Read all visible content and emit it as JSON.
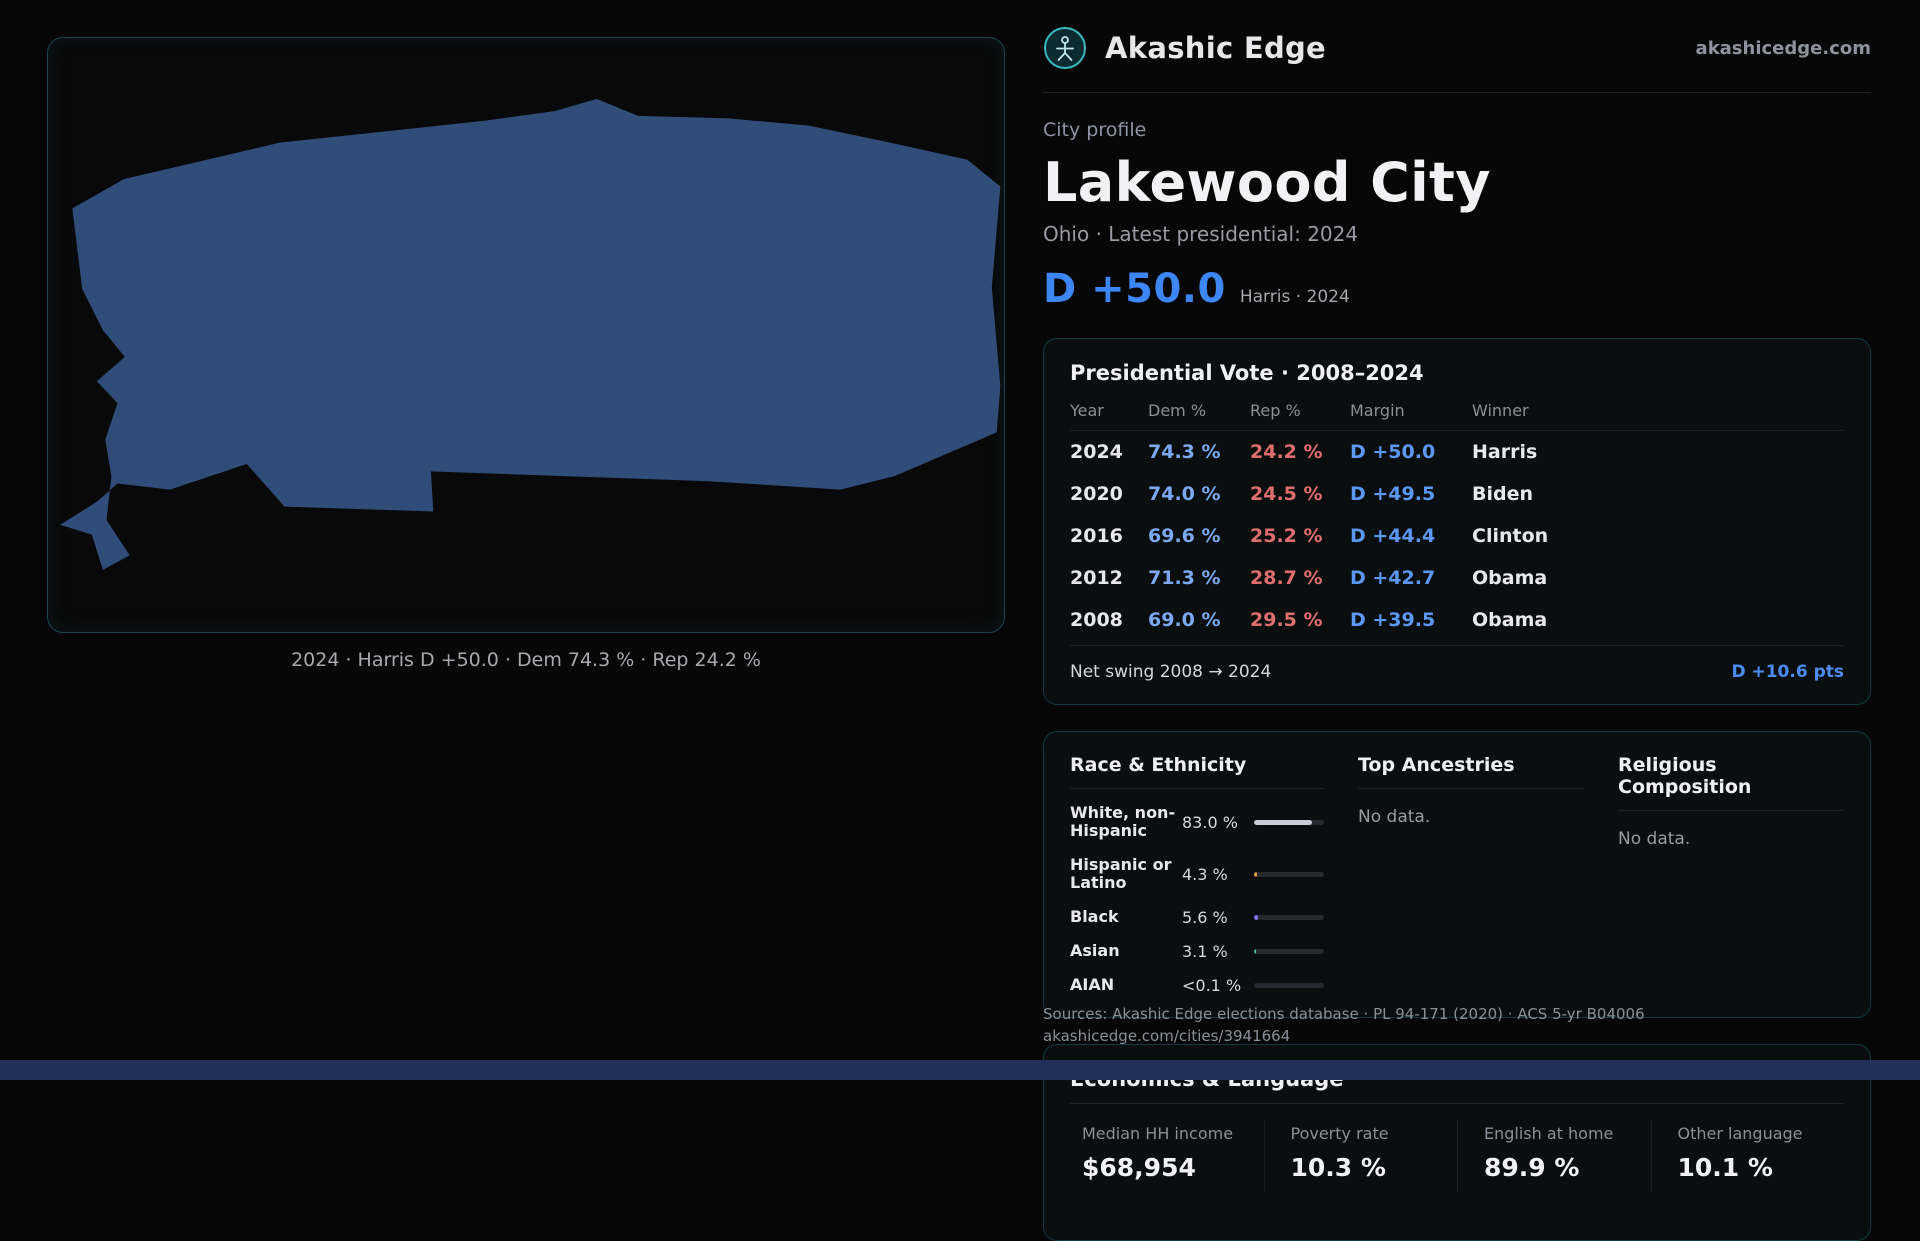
{
  "brand": {
    "name": "Akashic Edge",
    "domain": "akashicedge.com"
  },
  "profile": {
    "eyebrow": "City profile",
    "city": "Lakewood City",
    "subtitle": "Ohio · Latest presidential: 2024",
    "headline_margin": "D +50.0",
    "headline_note": "Harris · 2024"
  },
  "map": {
    "caption": "2024 · Harris D +50.0 · Dem 74.3 % · Rep 24.2 %",
    "fill_color": "#2f4d78",
    "border_color": "#17454c"
  },
  "vote_table": {
    "title": "Presidential Vote · 2008–2024",
    "columns": [
      "Year",
      "Dem %",
      "Rep %",
      "Margin",
      "Winner"
    ],
    "rows": [
      {
        "year": "2024",
        "dem": "74.3 %",
        "rep": "24.2 %",
        "margin": "D +50.0",
        "winner": "Harris"
      },
      {
        "year": "2020",
        "dem": "74.0 %",
        "rep": "24.5 %",
        "margin": "D +49.5",
        "winner": "Biden"
      },
      {
        "year": "2016",
        "dem": "69.6 %",
        "rep": "25.2 %",
        "margin": "D +44.4",
        "winner": "Clinton"
      },
      {
        "year": "2012",
        "dem": "71.3 %",
        "rep": "28.7 %",
        "margin": "D +42.7",
        "winner": "Obama"
      },
      {
        "year": "2008",
        "dem": "69.0 %",
        "rep": "29.5 %",
        "margin": "D +39.5",
        "winner": "Obama"
      }
    ],
    "footer_label": "Net swing 2008 → 2024",
    "footer_value": "D +10.6 pts"
  },
  "demographics": {
    "race": {
      "title": "Race & Ethnicity",
      "rows": [
        {
          "label": "White, non-Hispanic",
          "value": "83.0 %",
          "pct": 83,
          "color": "#c9ced6"
        },
        {
          "label": "Hispanic or Latino",
          "value": "4.3 %",
          "pct": 4.3,
          "color": "#e09b3d"
        },
        {
          "label": "Black",
          "value": "5.6 %",
          "pct": 5.6,
          "color": "#7d74f0"
        },
        {
          "label": "Asian",
          "value": "3.1 %",
          "pct": 3.1,
          "color": "#3dbf9e"
        },
        {
          "label": "AIAN",
          "value": "<0.1 %",
          "pct": 0,
          "color": "#c9ced6"
        }
      ]
    },
    "ancestries": {
      "title": "Top Ancestries",
      "empty": "No data."
    },
    "religion": {
      "title": "Religious Composition",
      "empty": "No data."
    }
  },
  "economics": {
    "title": "Economics & Language",
    "stats": [
      {
        "label": "Median HH income",
        "value": "$68,954"
      },
      {
        "label": "Poverty rate",
        "value": "10.3 %"
      },
      {
        "label": "English at home",
        "value": "89.9 %"
      },
      {
        "label": "Other language",
        "value": "10.1 %"
      }
    ]
  },
  "footer": {
    "sources": "Sources: Akashic Edge elections database · PL 94-171 (2020) · ACS 5-yr B04006",
    "permalink": "akashicedge.com/cities/3941664"
  },
  "colors": {
    "dem_blue": "#7aa9f2",
    "rep_red": "#e06e6e",
    "margin_blue": "#5b97f4",
    "headline_blue": "#3d86f6",
    "accent_teal": "#39b8bf"
  }
}
